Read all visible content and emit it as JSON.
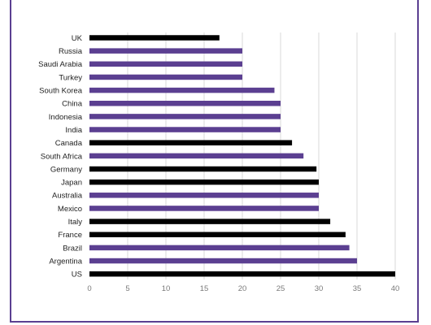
{
  "chart_data": {
    "type": "bar",
    "orientation": "horizontal",
    "categories": [
      "UK",
      "Russia",
      "Saudi Arabia",
      "Turkey",
      "South Korea",
      "China",
      "Indonesia",
      "India",
      "Canada",
      "South Africa",
      "Germany",
      "Japan",
      "Australia",
      "Mexico",
      "Italy",
      "France",
      "Brazil",
      "Argentina",
      "US"
    ],
    "values": [
      17,
      20,
      20,
      20,
      24.2,
      25,
      25,
      25,
      26.5,
      28,
      29.7,
      30,
      30,
      30,
      31.5,
      33.5,
      34,
      35,
      40
    ],
    "bar_colors": [
      "#000000",
      "#5b3f91",
      "#5b3f91",
      "#5b3f91",
      "#5b3f91",
      "#5b3f91",
      "#5b3f91",
      "#5b3f91",
      "#000000",
      "#5b3f91",
      "#000000",
      "#000000",
      "#5b3f91",
      "#5b3f91",
      "#000000",
      "#000000",
      "#5b3f91",
      "#5b3f91",
      "#000000"
    ],
    "xlim": [
      0,
      40
    ],
    "xticks": [
      0,
      5,
      10,
      15,
      20,
      25,
      30,
      35,
      40
    ],
    "grid": "vertical",
    "legend": "none",
    "colors": {
      "purple": "#5b3f91",
      "black": "#000000",
      "frame": "#5b3f91",
      "gridline": "#d9d9d9"
    }
  }
}
